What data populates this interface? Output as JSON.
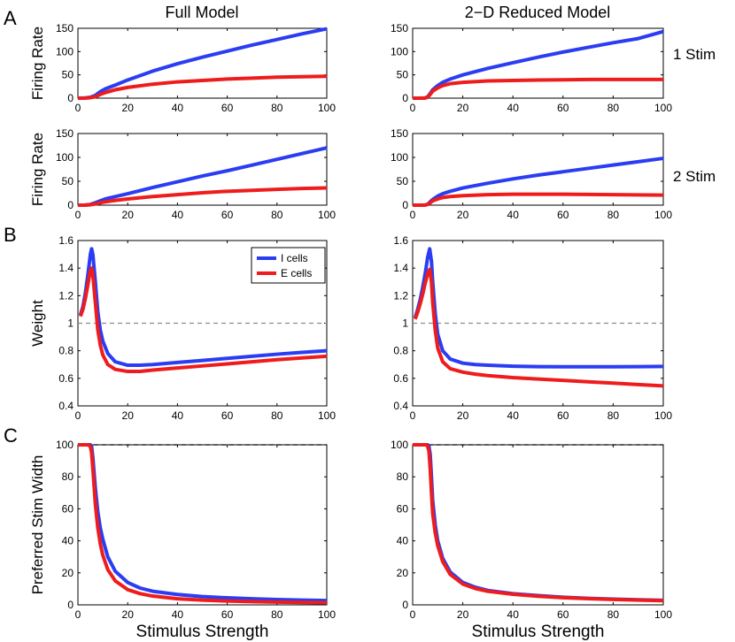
{
  "panel_letters": [
    "A",
    "B",
    "C"
  ],
  "column_titles": [
    "Full Model",
    "2−D Reduced Model"
  ],
  "row_labels": [
    "1 Stim",
    "2 Stim"
  ],
  "colors": {
    "I": "#2b3df2",
    "E": "#ee1c1c",
    "ref_grey": "#8c8c8c",
    "ref_black": "#000000"
  },
  "chart_data": [
    {
      "type": "line",
      "panel": "A",
      "column": "Full Model",
      "row_label": "1 Stim",
      "xlabel": "",
      "ylabel": "Firing Rate",
      "xlim": [
        0,
        100
      ],
      "ylim": [
        0,
        150
      ],
      "xticks": [
        0,
        20,
        40,
        60,
        80,
        100
      ],
      "yticks": [
        0,
        50,
        100,
        150
      ],
      "series": [
        {
          "key": "I",
          "x": [
            0,
            3,
            5,
            7,
            9,
            11,
            15,
            20,
            30,
            40,
            50,
            60,
            70,
            80,
            90,
            100
          ],
          "y": [
            0,
            0.5,
            2,
            6,
            14,
            20,
            28,
            39,
            58,
            74,
            88,
            101,
            114,
            126,
            138,
            149
          ]
        },
        {
          "key": "E",
          "x": [
            0,
            3,
            5,
            7,
            9,
            11,
            15,
            20,
            30,
            40,
            50,
            60,
            70,
            80,
            90,
            100
          ],
          "y": [
            0,
            0.2,
            1,
            3,
            8,
            12,
            18,
            23,
            30,
            35,
            38,
            41,
            43,
            45,
            46,
            47
          ]
        }
      ]
    },
    {
      "type": "line",
      "panel": "A",
      "column": "2−D Reduced Model",
      "row_label": "1 Stim",
      "xlabel": "",
      "ylabel": "",
      "xlim": [
        0,
        100
      ],
      "ylim": [
        0,
        150
      ],
      "xticks": [
        0,
        20,
        40,
        60,
        80,
        100
      ],
      "yticks": [
        0,
        50,
        100,
        150
      ],
      "series": [
        {
          "key": "I",
          "x": [
            0,
            3,
            5,
            6,
            7,
            8,
            10,
            12,
            15,
            20,
            30,
            40,
            50,
            60,
            70,
            80,
            90,
            100
          ],
          "y": [
            0,
            0,
            0.5,
            3,
            10,
            18,
            27,
            34,
            41,
            50,
            64,
            76,
            88,
            99,
            109,
            119,
            128,
            143
          ]
        },
        {
          "key": "E",
          "x": [
            0,
            3,
            5,
            6,
            7,
            8,
            10,
            12,
            15,
            20,
            30,
            40,
            50,
            60,
            70,
            80,
            90,
            100
          ],
          "y": [
            0,
            0,
            0.3,
            2,
            8,
            15,
            22,
            27,
            31,
            34,
            37,
            38,
            39,
            39.5,
            40,
            40,
            40,
            40
          ]
        }
      ]
    },
    {
      "type": "line",
      "panel": "A",
      "column": "Full Model",
      "row_label": "2 Stim",
      "xlabel": "",
      "ylabel": "Firing Rate",
      "xlim": [
        0,
        100
      ],
      "ylim": [
        0,
        150
      ],
      "xticks": [
        0,
        20,
        40,
        60,
        80,
        100
      ],
      "yticks": [
        0,
        50,
        100,
        150
      ],
      "series": [
        {
          "key": "I",
          "x": [
            0,
            3,
            5,
            7,
            9,
            11,
            15,
            20,
            30,
            40,
            50,
            60,
            70,
            80,
            90,
            100
          ],
          "y": [
            0,
            0.3,
            1.5,
            5,
            9,
            13,
            18,
            24,
            37,
            49,
            61,
            72,
            84,
            96,
            108,
            120
          ]
        },
        {
          "key": "E",
          "x": [
            0,
            3,
            5,
            7,
            9,
            11,
            15,
            20,
            30,
            40,
            50,
            60,
            70,
            80,
            90,
            100
          ],
          "y": [
            0,
            0.2,
            0.8,
            2.5,
            5,
            7,
            10,
            13,
            18,
            22,
            26,
            29,
            31,
            33,
            35,
            36
          ]
        }
      ]
    },
    {
      "type": "line",
      "panel": "A",
      "column": "2−D Reduced Model",
      "row_label": "2 Stim",
      "xlabel": "",
      "ylabel": "",
      "xlim": [
        0,
        100
      ],
      "ylim": [
        0,
        150
      ],
      "xticks": [
        0,
        20,
        40,
        60,
        80,
        100
      ],
      "yticks": [
        0,
        50,
        100,
        150
      ],
      "series": [
        {
          "key": "I",
          "x": [
            0,
            3,
            5,
            6,
            7,
            8,
            10,
            12,
            15,
            20,
            30,
            40,
            50,
            60,
            70,
            80,
            90,
            100
          ],
          "y": [
            0,
            0,
            0.3,
            2,
            7,
            12,
            19,
            24,
            29,
            36,
            46,
            55,
            63,
            70,
            77,
            84,
            91,
            98
          ]
        },
        {
          "key": "E",
          "x": [
            0,
            3,
            5,
            6,
            7,
            8,
            10,
            12,
            15,
            20,
            30,
            40,
            50,
            60,
            70,
            80,
            90,
            100
          ],
          "y": [
            0,
            0,
            0.2,
            1.5,
            5,
            9,
            13,
            16,
            18,
            20,
            22,
            23,
            23,
            23,
            22.5,
            22,
            21.5,
            21
          ]
        }
      ]
    },
    {
      "type": "line",
      "panel": "B",
      "column": "Full Model",
      "xlabel": "",
      "ylabel": "Weight",
      "xlim": [
        0,
        100
      ],
      "ylim": [
        0.4,
        1.6
      ],
      "xticks": [
        0,
        20,
        40,
        60,
        80,
        100
      ],
      "yticks": [
        0.4,
        0.6,
        0.8,
        1,
        1.2,
        1.4,
        1.6
      ],
      "reference_line": {
        "y": 1,
        "style": "dashed",
        "color": "grey"
      },
      "legend": {
        "location": "upper-middle",
        "entries": [
          "I cells",
          "E cells"
        ]
      },
      "series": [
        {
          "key": "I",
          "name": "I cells",
          "x": [
            1,
            2,
            3,
            4,
            5,
            5.5,
            6,
            7,
            8,
            9,
            10,
            12,
            15,
            20,
            25,
            30,
            40,
            50,
            60,
            70,
            80,
            90,
            100
          ],
          "y": [
            1.06,
            1.12,
            1.22,
            1.35,
            1.5,
            1.54,
            1.5,
            1.3,
            1.08,
            0.95,
            0.87,
            0.78,
            0.72,
            0.695,
            0.695,
            0.7,
            0.715,
            0.73,
            0.745,
            0.76,
            0.775,
            0.788,
            0.8
          ]
        },
        {
          "key": "E",
          "name": "E cells",
          "x": [
            1,
            2,
            3,
            4,
            5,
            5.5,
            6,
            7,
            8,
            9,
            10,
            12,
            15,
            20,
            25,
            30,
            40,
            50,
            60,
            70,
            80,
            90,
            100
          ],
          "y": [
            1.05,
            1.1,
            1.18,
            1.28,
            1.38,
            1.4,
            1.35,
            1.15,
            0.95,
            0.84,
            0.77,
            0.7,
            0.665,
            0.65,
            0.65,
            0.66,
            0.675,
            0.69,
            0.705,
            0.72,
            0.735,
            0.748,
            0.76
          ]
        }
      ]
    },
    {
      "type": "line",
      "panel": "B",
      "column": "2−D Reduced Model",
      "xlabel": "",
      "ylabel": "",
      "xlim": [
        0,
        100
      ],
      "ylim": [
        0.4,
        1.6
      ],
      "xticks": [
        0,
        20,
        40,
        60,
        80,
        100
      ],
      "yticks": [
        0.4,
        0.6,
        0.8,
        1,
        1.2,
        1.4,
        1.6
      ],
      "reference_line": {
        "y": 1,
        "style": "dashed",
        "color": "grey"
      },
      "series": [
        {
          "key": "I",
          "x": [
            1,
            2,
            3,
            4,
            5,
            6,
            6.8,
            7.5,
            8,
            9,
            10,
            12,
            15,
            20,
            25,
            30,
            40,
            50,
            60,
            70,
            80,
            90,
            100
          ],
          "y": [
            1.04,
            1.1,
            1.17,
            1.26,
            1.36,
            1.48,
            1.54,
            1.45,
            1.3,
            1.07,
            0.92,
            0.8,
            0.74,
            0.71,
            0.7,
            0.695,
            0.688,
            0.685,
            0.684,
            0.684,
            0.684,
            0.685,
            0.686
          ]
        },
        {
          "key": "E",
          "x": [
            1,
            2,
            3,
            4,
            5,
            6,
            6.8,
            7.5,
            8,
            9,
            10,
            12,
            15,
            20,
            25,
            30,
            40,
            50,
            60,
            70,
            80,
            90,
            100
          ],
          "y": [
            1.03,
            1.08,
            1.14,
            1.21,
            1.29,
            1.36,
            1.39,
            1.3,
            1.15,
            0.95,
            0.82,
            0.72,
            0.67,
            0.645,
            0.63,
            0.62,
            0.605,
            0.595,
            0.585,
            0.575,
            0.565,
            0.555,
            0.545
          ]
        }
      ]
    },
    {
      "type": "line",
      "panel": "C",
      "column": "Full Model",
      "xlabel": "Stimulus Strength",
      "ylabel": "Preferred Stim Width",
      "xlim": [
        0,
        100
      ],
      "ylim": [
        0,
        100
      ],
      "xticks": [
        0,
        20,
        40,
        60,
        80,
        100
      ],
      "yticks": [
        0,
        20,
        40,
        60,
        80,
        100
      ],
      "reference_line": {
        "y": 100,
        "style": "dashed",
        "color": "black"
      },
      "series": [
        {
          "key": "I",
          "x": [
            0,
            4,
            5,
            5.5,
            6,
            7,
            8,
            9,
            10,
            12,
            15,
            20,
            25,
            30,
            40,
            50,
            60,
            70,
            80,
            90,
            100
          ],
          "y": [
            100,
            100,
            100,
            99,
            92,
            73,
            58,
            48,
            41,
            30,
            21,
            14,
            10.5,
            8.5,
            6.5,
            5.2,
            4.4,
            3.8,
            3.3,
            3,
            2.7
          ]
        },
        {
          "key": "E",
          "x": [
            0,
            4,
            5,
            5.5,
            6,
            7,
            8,
            9,
            10,
            12,
            15,
            20,
            25,
            30,
            40,
            50,
            60,
            70,
            80,
            90,
            100
          ],
          "y": [
            100,
            100,
            99,
            95,
            85,
            63,
            48,
            38,
            31,
            22,
            15,
            9.5,
            7,
            5.5,
            3.8,
            3,
            2.4,
            2,
            1.7,
            1.5,
            1.3
          ]
        }
      ]
    },
    {
      "type": "line",
      "panel": "C",
      "column": "2−D Reduced Model",
      "xlabel": "Stimulus Strength",
      "ylabel": "",
      "xlim": [
        0,
        100
      ],
      "ylim": [
        0,
        100
      ],
      "xticks": [
        0,
        20,
        40,
        60,
        80,
        100
      ],
      "yticks": [
        0,
        20,
        40,
        60,
        80,
        100
      ],
      "reference_line": {
        "y": 100,
        "style": "dashed",
        "color": "black"
      },
      "series": [
        {
          "key": "I",
          "x": [
            0,
            5.5,
            6,
            6.5,
            7,
            7.5,
            8,
            9,
            10,
            12,
            15,
            20,
            25,
            30,
            40,
            50,
            60,
            70,
            80,
            90,
            100
          ],
          "y": [
            100,
            100,
            100,
            99,
            94,
            80,
            65,
            50,
            40,
            29,
            20.5,
            14,
            11,
            9,
            7,
            5.8,
            4.8,
            4.1,
            3.6,
            3.2,
            2.8
          ]
        },
        {
          "key": "E",
          "x": [
            0,
            5.5,
            6,
            6.5,
            7,
            7.5,
            8,
            9,
            10,
            12,
            15,
            20,
            25,
            30,
            40,
            50,
            60,
            70,
            80,
            90,
            100
          ],
          "y": [
            100,
            100,
            99,
            96,
            85,
            70,
            57,
            45,
            37,
            27,
            19,
            13,
            10.2,
            8.5,
            6.6,
            5.4,
            4.5,
            3.9,
            3.4,
            3,
            2.6
          ]
        }
      ]
    }
  ]
}
